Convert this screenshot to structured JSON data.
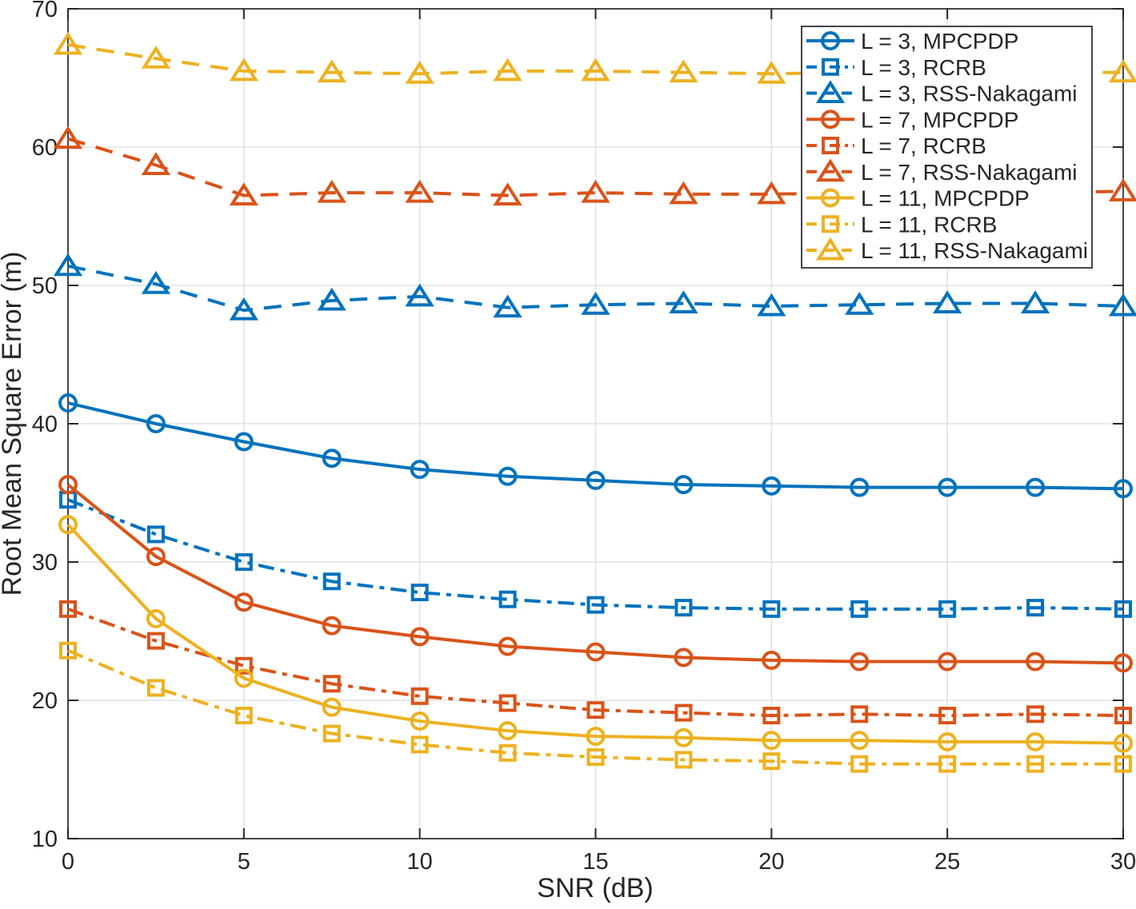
{
  "chart_data": {
    "type": "line",
    "title": "",
    "xlabel": "SNR (dB)",
    "ylabel": "Root Mean Square Error (m)",
    "xlim": [
      0,
      30
    ],
    "ylim": [
      10,
      70
    ],
    "xticks": [
      "0",
      "5",
      "10",
      "15",
      "20",
      "25",
      "30"
    ],
    "yticks": [
      "10",
      "20",
      "30",
      "40",
      "50",
      "60",
      "70"
    ],
    "grid": true,
    "legend_position": "northeast",
    "x": [
      0,
      2.5,
      5,
      7.5,
      10,
      12.5,
      15,
      17.5,
      20,
      22.5,
      25,
      27.5,
      30
    ],
    "series": [
      {
        "name": "L = 3, MPCPDP",
        "color": "#0072BD",
        "line_style": "solid",
        "marker": "circle",
        "values": [
          41.5,
          40.0,
          38.7,
          37.5,
          36.7,
          36.2,
          35.9,
          35.6,
          35.5,
          35.4,
          35.4,
          35.4,
          35.3
        ]
      },
      {
        "name": "L = 3, RCRB",
        "color": "#0072BD",
        "line_style": "dashdot",
        "marker": "square",
        "values": [
          34.5,
          32.0,
          30.0,
          28.6,
          27.8,
          27.3,
          26.9,
          26.7,
          26.6,
          26.6,
          26.6,
          26.7,
          26.6
        ]
      },
      {
        "name": "L = 3, RSS-Nakagami",
        "color": "#0072BD",
        "line_style": "dashed",
        "marker": "triangle",
        "values": [
          51.4,
          50.1,
          48.2,
          48.9,
          49.2,
          48.4,
          48.6,
          48.7,
          48.5,
          48.6,
          48.7,
          48.7,
          48.5
        ]
      },
      {
        "name": "L = 7, MPCPDP",
        "color": "#D95319",
        "line_style": "solid",
        "marker": "circle",
        "values": [
          35.6,
          30.4,
          27.1,
          25.4,
          24.6,
          23.9,
          23.5,
          23.1,
          22.9,
          22.8,
          22.8,
          22.8,
          22.7
        ]
      },
      {
        "name": "L = 7, RCRB",
        "color": "#D95319",
        "line_style": "dashdot",
        "marker": "square",
        "values": [
          26.6,
          24.3,
          22.5,
          21.2,
          20.3,
          19.8,
          19.3,
          19.1,
          18.9,
          19.0,
          18.9,
          19.0,
          18.9
        ]
      },
      {
        "name": "L = 7, RSS-Nakagami",
        "color": "#D95319",
        "line_style": "dashed",
        "marker": "triangle",
        "values": [
          60.6,
          58.7,
          56.5,
          56.7,
          56.7,
          56.5,
          56.7,
          56.6,
          56.6,
          56.7,
          56.7,
          56.7,
          56.8
        ]
      },
      {
        "name": "L = 11, MPCPDP",
        "color": "#EDB120",
        "line_style": "solid",
        "marker": "circle",
        "values": [
          32.7,
          25.9,
          21.6,
          19.5,
          18.5,
          17.8,
          17.4,
          17.3,
          17.1,
          17.1,
          17.0,
          17.0,
          16.9
        ]
      },
      {
        "name": "L = 11, RCRB",
        "color": "#EDB120",
        "line_style": "dashdot",
        "marker": "square",
        "values": [
          23.6,
          20.9,
          18.9,
          17.6,
          16.8,
          16.2,
          15.9,
          15.7,
          15.6,
          15.4,
          15.4,
          15.4,
          15.4
        ]
      },
      {
        "name": "L = 11, RSS-Nakagami",
        "color": "#EDB120",
        "line_style": "dashed",
        "marker": "triangle",
        "values": [
          67.4,
          66.4,
          65.5,
          65.4,
          65.3,
          65.5,
          65.5,
          65.4,
          65.3,
          65.4,
          65.4,
          65.4,
          65.4
        ]
      }
    ],
    "style": {
      "axis_color": "#262626",
      "grid_color": "#e2e2e2",
      "background": "#ffffff",
      "legend_border_color": "#262626",
      "legend_background": "#ffffff"
    }
  }
}
